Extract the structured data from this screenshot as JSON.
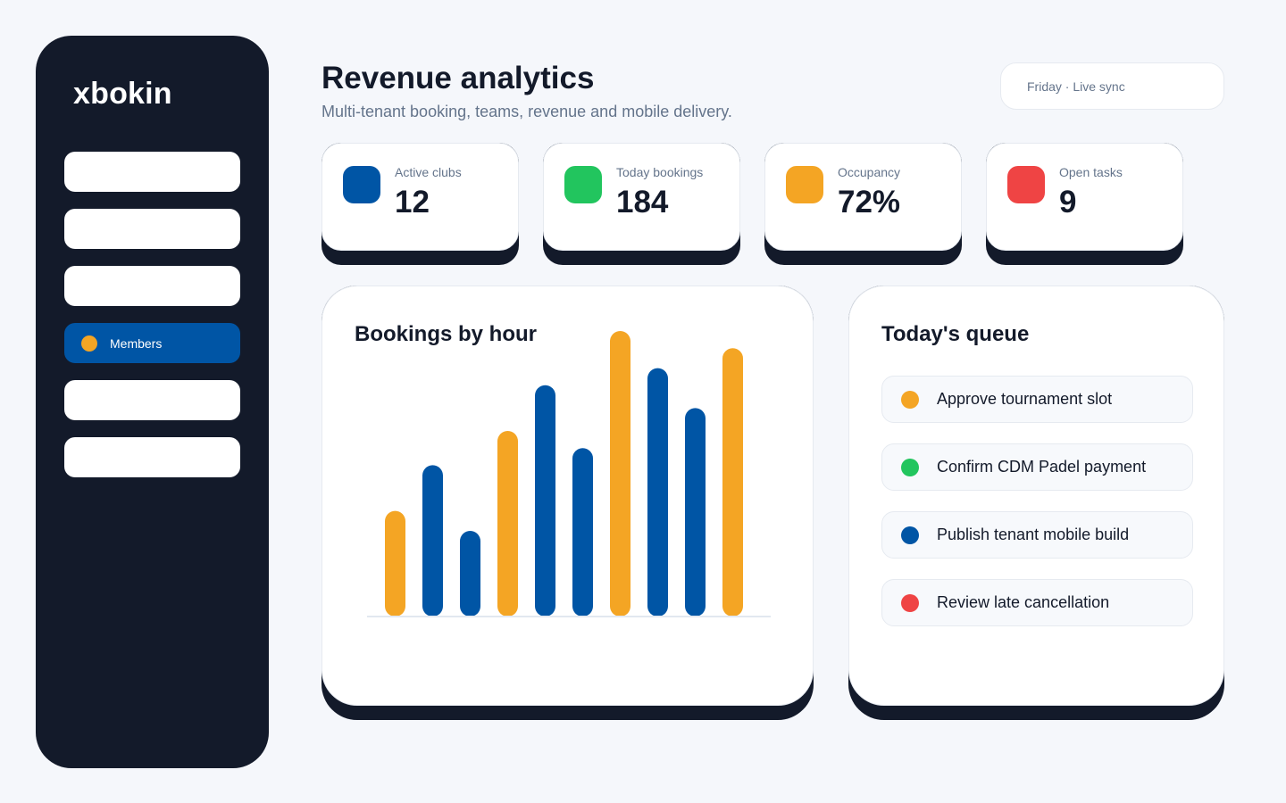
{
  "app": {
    "brand": "xbokin"
  },
  "sidebar": {
    "items": [
      {
        "label": "",
        "dot_color": "",
        "active": false
      },
      {
        "label": "",
        "dot_color": "",
        "active": false
      },
      {
        "label": "",
        "dot_color": "",
        "active": false
      },
      {
        "label": "Members",
        "dot_color": "#f4a524",
        "active": true
      },
      {
        "label": "",
        "dot_color": "",
        "active": false
      },
      {
        "label": "",
        "dot_color": "",
        "active": false
      }
    ]
  },
  "header": {
    "title": "Revenue analytics",
    "subtitle": "Multi-tenant booking, teams, revenue and mobile delivery.",
    "status": "Friday · Live sync"
  },
  "kpis": [
    {
      "label": "Active clubs",
      "value": "12",
      "color": "#0055a5"
    },
    {
      "label": "Today bookings",
      "value": "184",
      "color": "#22c55e"
    },
    {
      "label": "Occupancy",
      "value": "72%",
      "color": "#f4a524"
    },
    {
      "label": "Open tasks",
      "value": "9",
      "color": "#ef4444"
    }
  ],
  "chart_panel": {
    "title": "Bookings by hour"
  },
  "chart_data": {
    "type": "bar",
    "title": "Bookings by hour",
    "categories": [
      "",
      "",
      "",
      "",
      "",
      "",
      "",
      "",
      "",
      ""
    ],
    "values": [
      37,
      53,
      30,
      65,
      81,
      59,
      100,
      87,
      73,
      94
    ],
    "colors": [
      "#f4a524",
      "#0055a5",
      "#0055a5",
      "#f4a524",
      "#0055a5",
      "#0055a5",
      "#f4a524",
      "#0055a5",
      "#0055a5",
      "#f4a524"
    ],
    "ylim": [
      0,
      100
    ],
    "grid": false
  },
  "queue": {
    "title": "Today's queue",
    "items": [
      {
        "label": "Approve tournament slot",
        "color": "#f4a524"
      },
      {
        "label": "Confirm CDM Padel payment",
        "color": "#22c55e"
      },
      {
        "label": "Publish tenant mobile build",
        "color": "#0055a5"
      },
      {
        "label": "Review late cancellation",
        "color": "#ef4444"
      }
    ]
  }
}
